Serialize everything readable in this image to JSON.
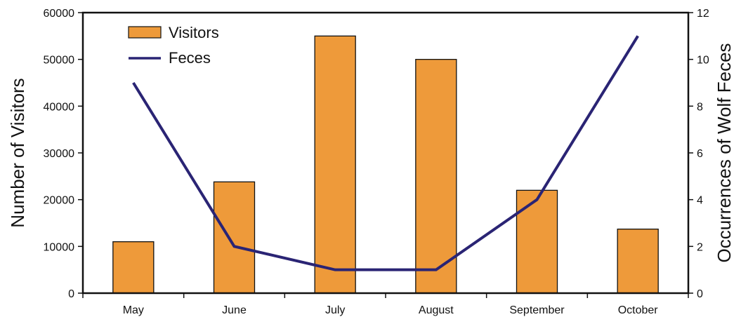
{
  "chart_data": {
    "type": "bar",
    "categories": [
      "May",
      "June",
      "July",
      "August",
      "September",
      "October"
    ],
    "series": [
      {
        "name": "Visitors",
        "type": "bar",
        "axis": "left",
        "values": [
          11000,
          23800,
          55000,
          50000,
          22000,
          13700
        ],
        "color": "#ee9a3a"
      },
      {
        "name": "Feces",
        "type": "line",
        "axis": "right",
        "values": [
          9,
          2,
          1,
          1,
          4,
          11
        ],
        "color": "#2a2474"
      }
    ],
    "ylabel": "Number of Visitors",
    "ylabel_right": "Occurrences of Wolf Feces",
    "ylim": [
      0,
      60000
    ],
    "ylim_right": [
      0,
      12
    ],
    "yticks": [
      "0",
      "10000",
      "20000",
      "30000",
      "40000",
      "50000",
      "60000"
    ],
    "yticks_right": [
      "0",
      "2",
      "4",
      "6",
      "8",
      "10",
      "12"
    ],
    "legend_position": "top-left",
    "grid": false
  }
}
